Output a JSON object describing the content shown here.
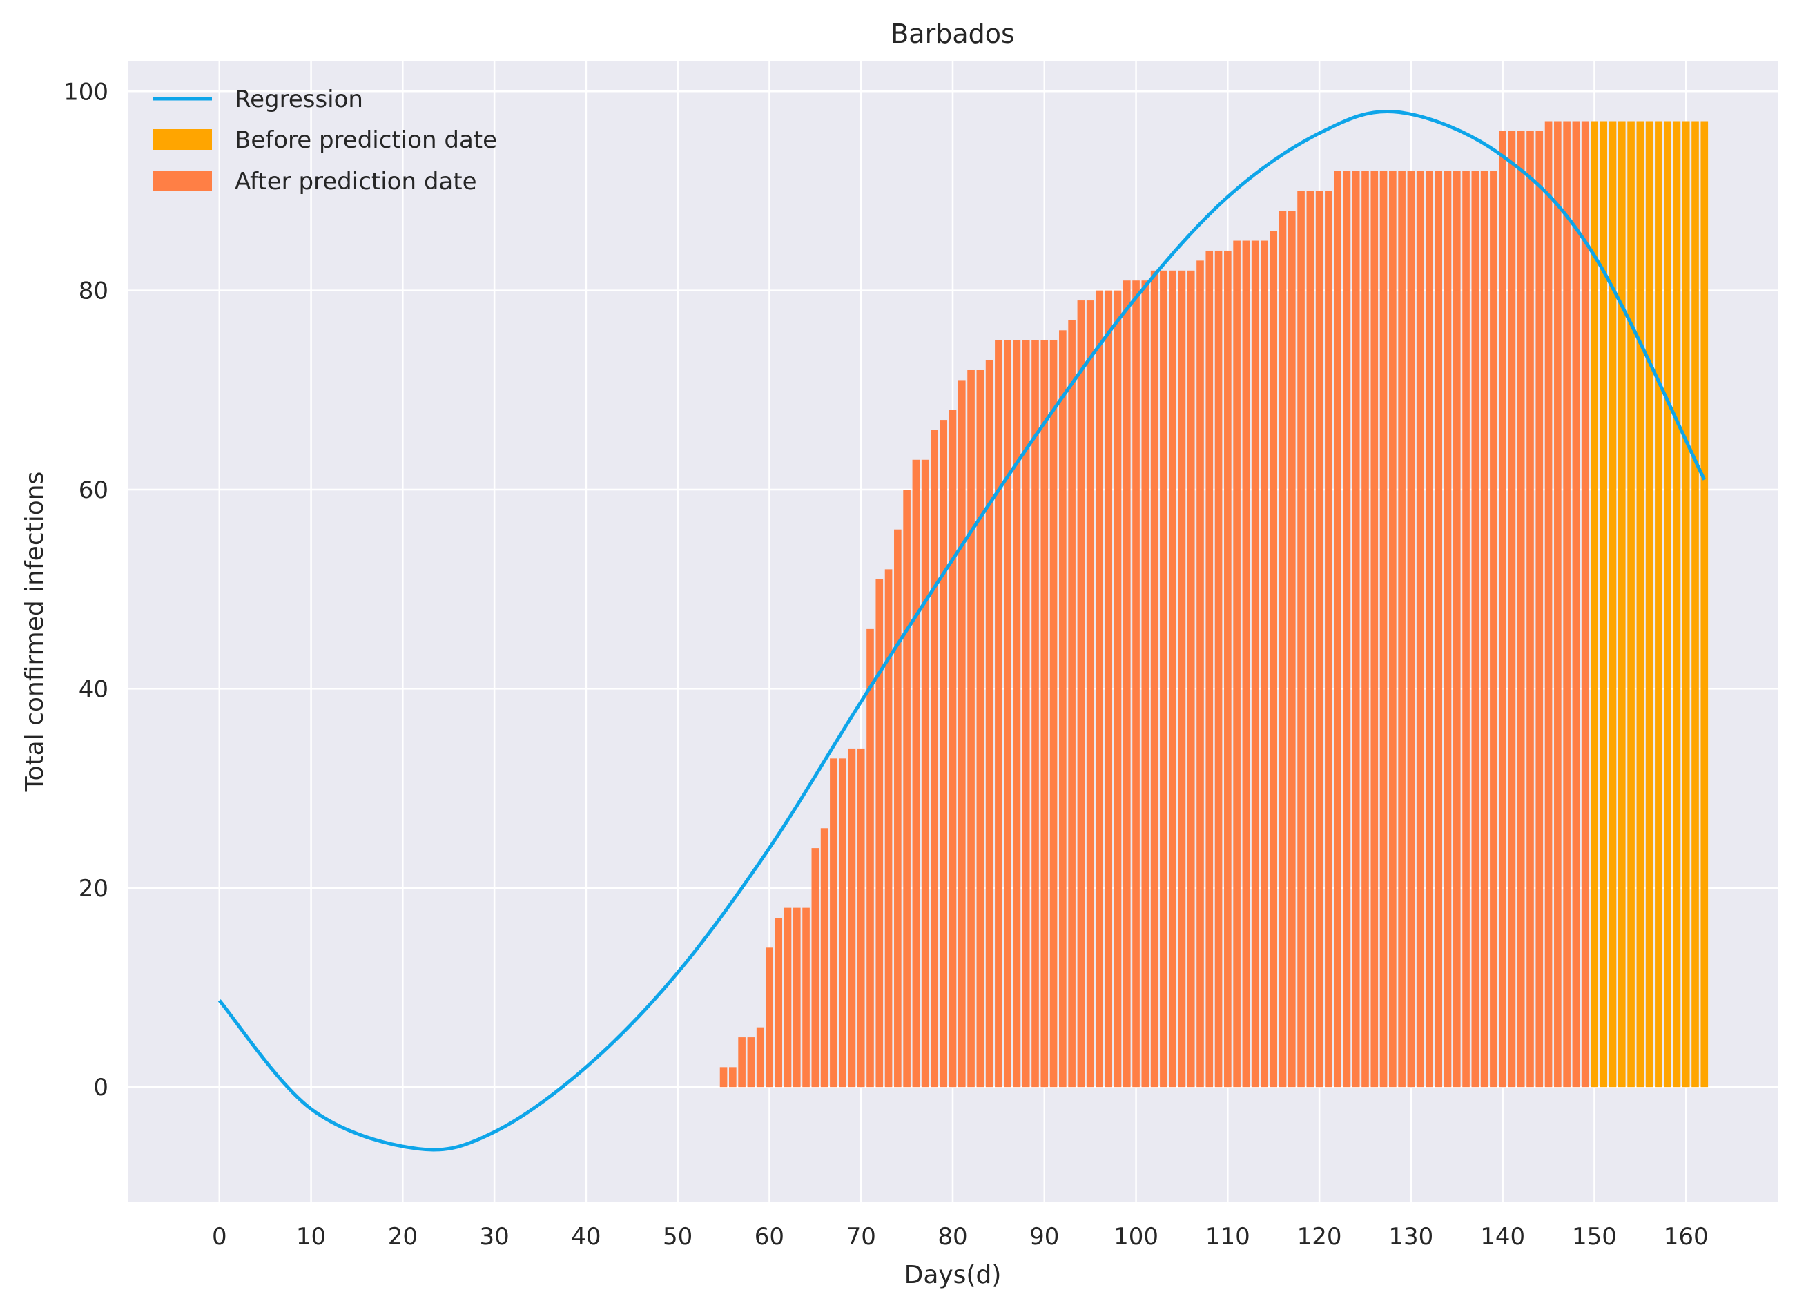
{
  "chart_data": {
    "type": "bar",
    "title": "Barbados",
    "xlabel": "Days(d)",
    "ylabel": "Total confirmed infections",
    "xlim": [
      -10,
      170
    ],
    "ylim": [
      -11.5,
      103
    ],
    "x_ticks": [
      0,
      10,
      20,
      30,
      40,
      50,
      60,
      70,
      80,
      90,
      100,
      110,
      120,
      130,
      140,
      150,
      160
    ],
    "y_ticks": [
      0,
      20,
      40,
      60,
      80,
      100
    ],
    "grid": true,
    "legend": {
      "placement": "top-left",
      "entries": [
        "Regression",
        "Before prediction date",
        "After prediction date"
      ]
    },
    "colors": {
      "background": "#eaeaf2",
      "grid": "#ffffff",
      "regression": "#0ea5e9",
      "before": "#ffa500",
      "after": "#ff7f45"
    },
    "series": [
      {
        "name": "After prediction date",
        "x_start": 55,
        "values": [
          2,
          2,
          5,
          5,
          6,
          14,
          17,
          18,
          18,
          18,
          24,
          26,
          33,
          33,
          34,
          34,
          46,
          51,
          52,
          56,
          60,
          63,
          63,
          66,
          67,
          68,
          71,
          72,
          72,
          73,
          75,
          75,
          75,
          75,
          75,
          75,
          75,
          76,
          77,
          79,
          79,
          80,
          80,
          80,
          81,
          81,
          81,
          82,
          82,
          82,
          82,
          82,
          83,
          84,
          84,
          84,
          85,
          85,
          85,
          85,
          86,
          88,
          88,
          90,
          90,
          90,
          90,
          92,
          92,
          92,
          92,
          92,
          92,
          92,
          92,
          92,
          92,
          92,
          92,
          92,
          92,
          92,
          92,
          92,
          92,
          96,
          96,
          96,
          96,
          96,
          97,
          97,
          97,
          97,
          97
        ]
      },
      {
        "name": "Before prediction date",
        "x_start": 150,
        "values": [
          97,
          97,
          97,
          97,
          97,
          97,
          97,
          97,
          97,
          97,
          97,
          97,
          97
        ]
      },
      {
        "name": "Regression",
        "type": "line",
        "x_range": [
          0,
          162
        ],
        "points": [
          [
            0,
            8.7
          ],
          [
            10,
            -2.2
          ],
          [
            21.7,
            -6.2
          ],
          [
            30,
            -4.5
          ],
          [
            40,
            2.0
          ],
          [
            50,
            11.5
          ],
          [
            60,
            24.0
          ],
          [
            70,
            38.7
          ],
          [
            80,
            53.0
          ],
          [
            90,
            66.7
          ],
          [
            100,
            79.3
          ],
          [
            110,
            89.4
          ],
          [
            120,
            95.8
          ],
          [
            128.7,
            97.9
          ],
          [
            140,
            93.5
          ],
          [
            150,
            83.5
          ],
          [
            162,
            61.0
          ]
        ]
      }
    ]
  }
}
